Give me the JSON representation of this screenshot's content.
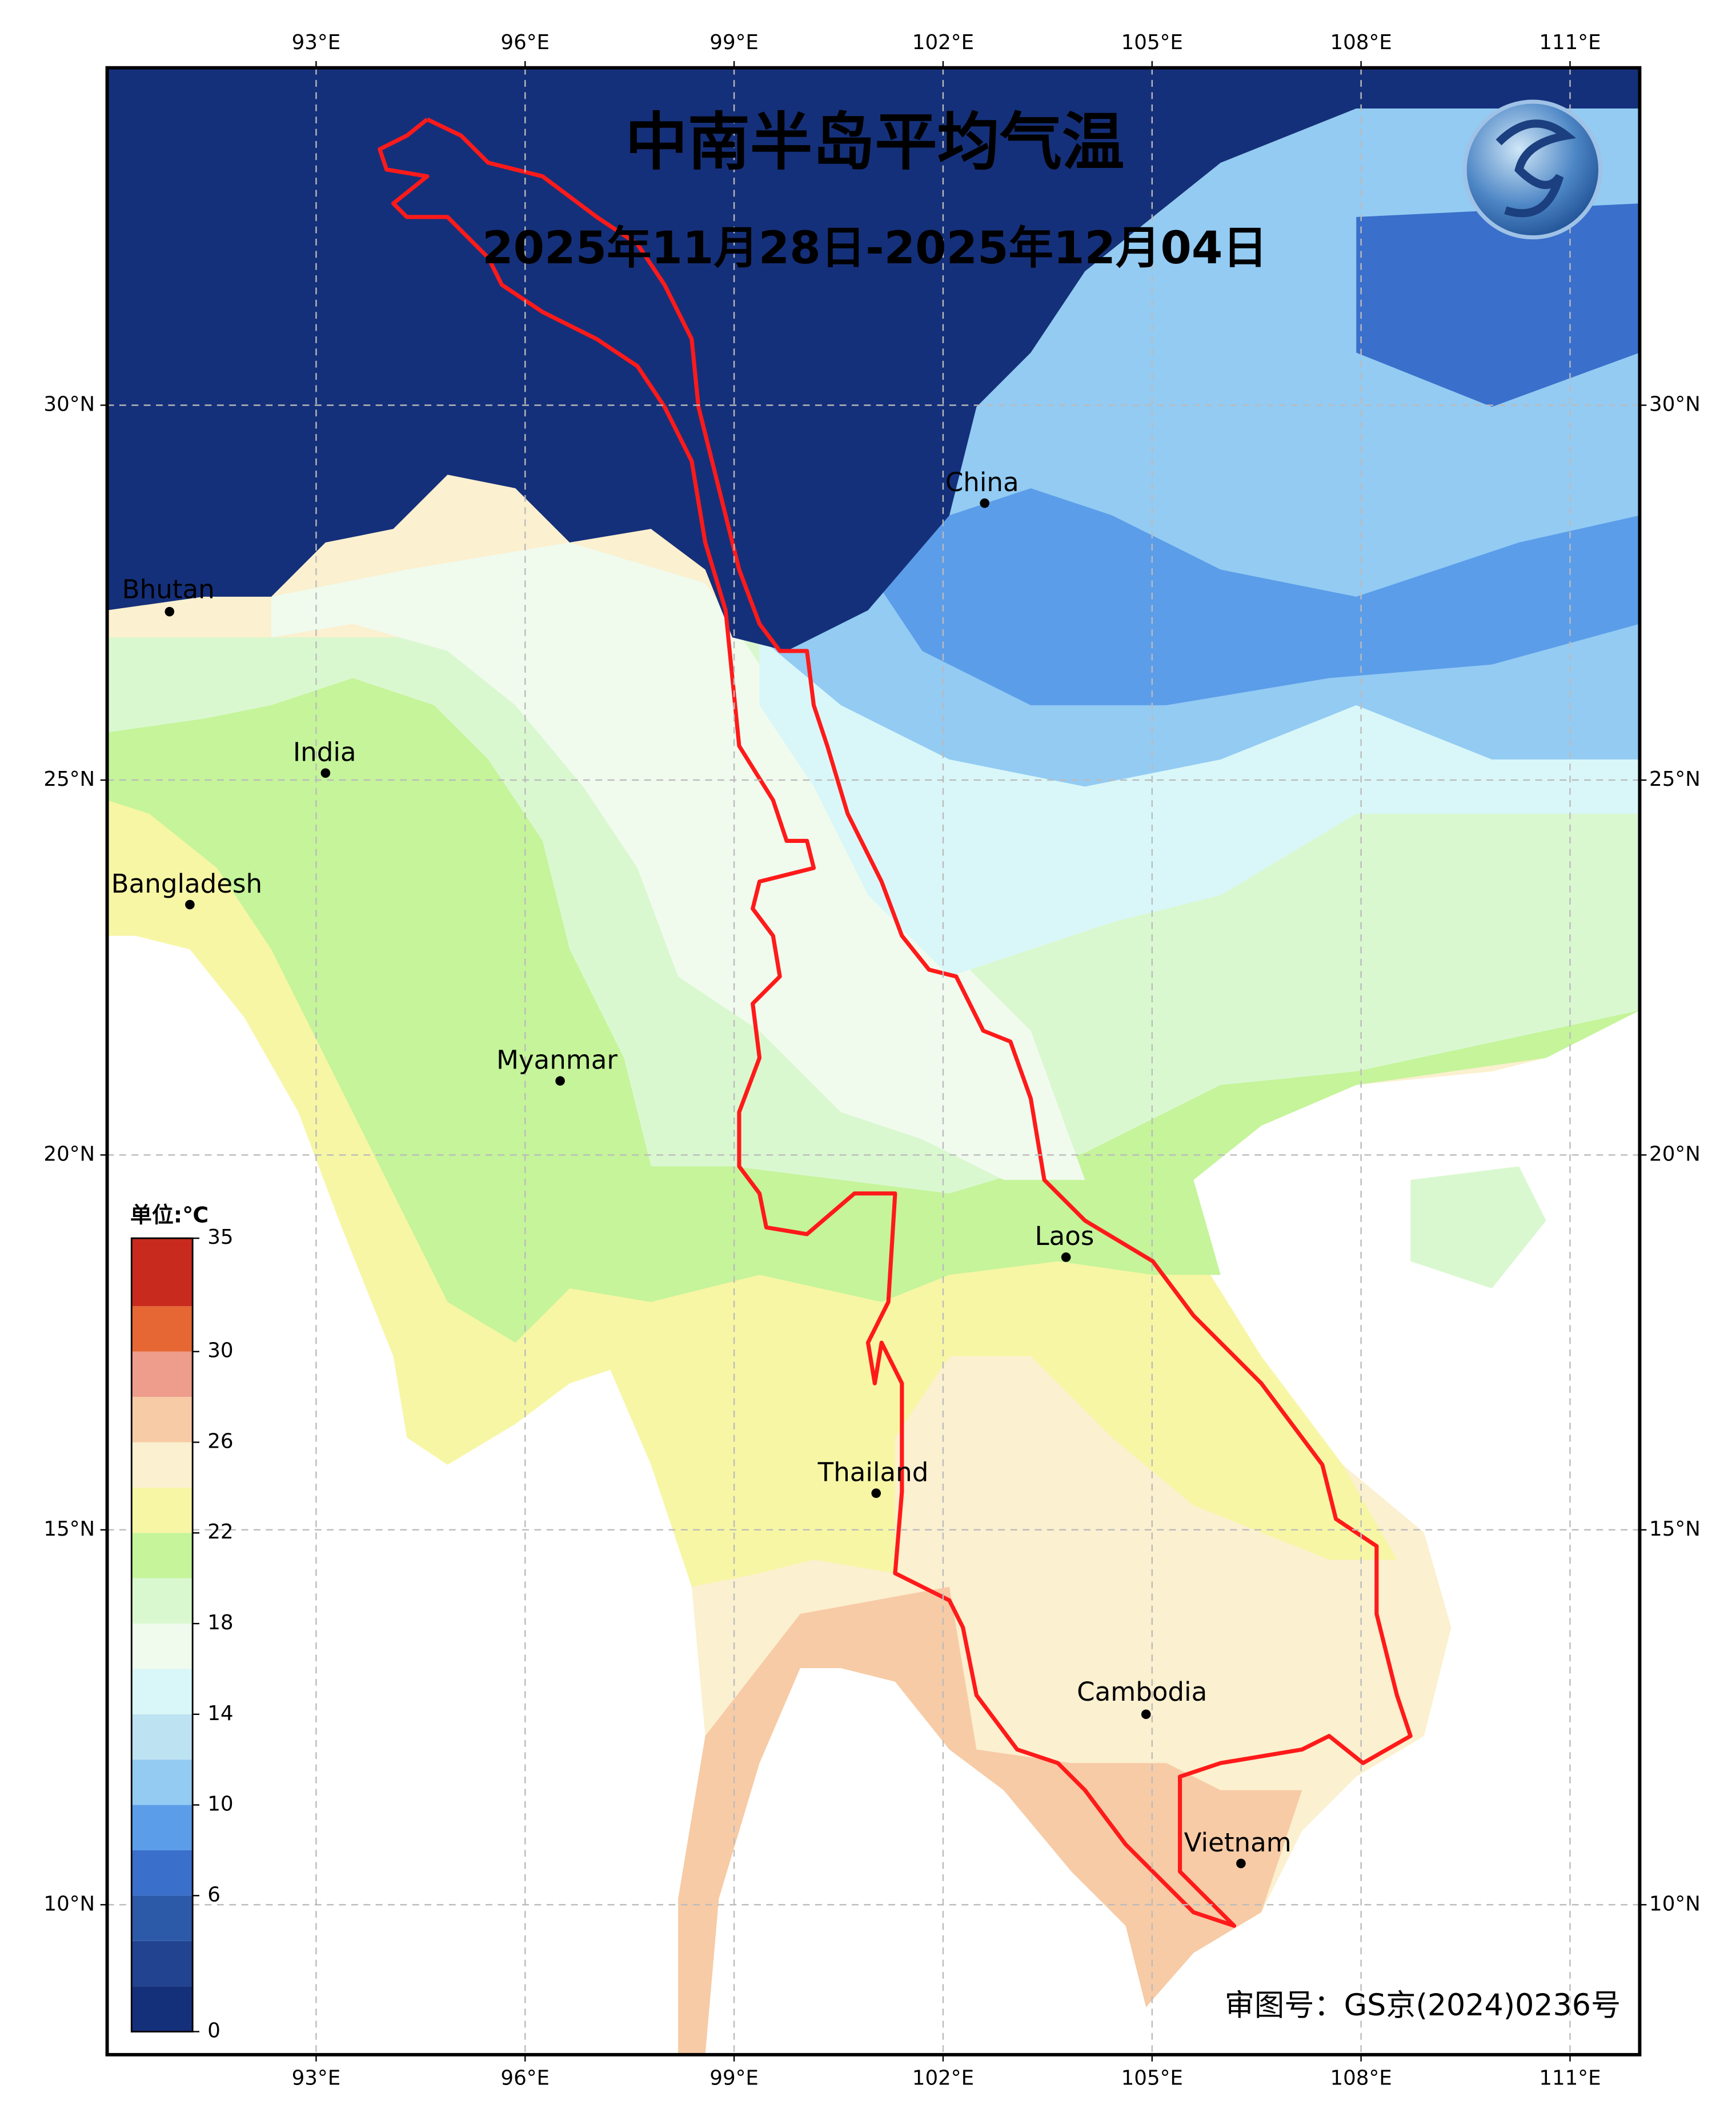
{
  "title": "中南半岛平均气温",
  "subtitle": "2025年11月28日-2025年12月04日",
  "map": {
    "xlim": [
      90,
      112
    ],
    "ylim": [
      8,
      34.5
    ],
    "lon_ticks": [
      {
        "value": 93,
        "label": "93°E"
      },
      {
        "value": 96,
        "label": "96°E"
      },
      {
        "value": 99,
        "label": "99°E"
      },
      {
        "value": 102,
        "label": "102°E"
      },
      {
        "value": 105,
        "label": "105°E"
      },
      {
        "value": 108,
        "label": "108°E"
      },
      {
        "value": 111,
        "label": "111°E"
      }
    ],
    "lat_ticks": [
      {
        "value": 10,
        "label": "10°N"
      },
      {
        "value": 15,
        "label": "15°N"
      },
      {
        "value": 20,
        "label": "20°N"
      },
      {
        "value": 25,
        "label": "25°N"
      },
      {
        "value": 30,
        "label": "30°N"
      }
    ],
    "grid": true,
    "countries": [
      "Bhutan",
      "India",
      "Bangladesh",
      "Myanmar",
      "China",
      "Laos",
      "Thailand",
      "Cambodia",
      "Vietnam"
    ]
  },
  "colorbar": {
    "unit": "单位:℃",
    "lim": [
      0,
      35
    ],
    "ticks": [
      0,
      6,
      10,
      14,
      18,
      22,
      26,
      30,
      35
    ],
    "bounds": [
      0,
      2,
      4,
      6,
      8,
      10,
      12,
      14,
      16,
      18,
      20,
      22,
      24,
      26,
      28,
      30,
      32,
      35
    ],
    "colors": [
      "#15307a",
      "#22438f",
      "#2c5aa8",
      "#3a6fcb",
      "#5b9de8",
      "#93cbf3",
      "#bde2f1",
      "#d9f7f9",
      "#f0fbee",
      "#daf8d0",
      "#c5f49a",
      "#f7f6a5",
      "#fbf0cf",
      "#f7cba6",
      "#ee9c8c",
      "#e66733",
      "#c92a1e"
    ]
  },
  "review_number": "审图号：GS京(2024)0236号"
}
